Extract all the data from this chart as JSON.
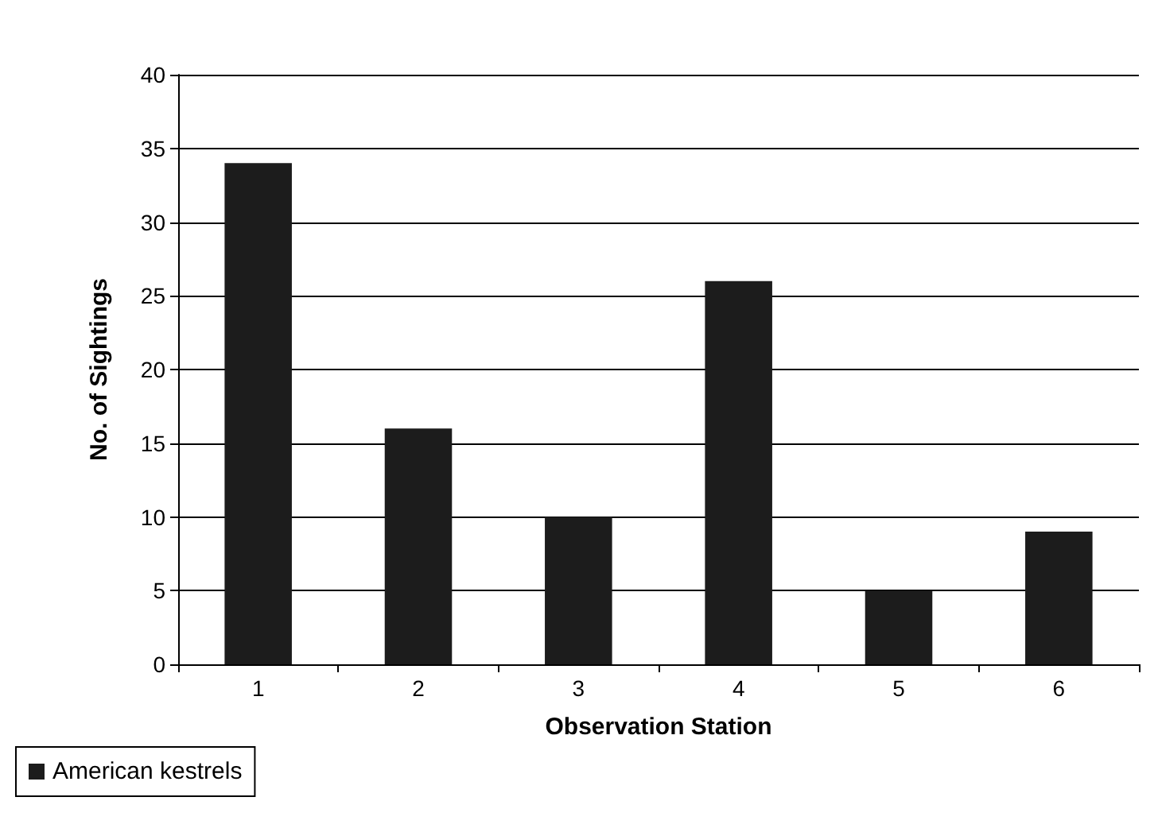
{
  "chart_data": {
    "type": "bar",
    "xlabel": "Observation Station",
    "ylabel": "No. of Sightings",
    "categories": [
      "1",
      "2",
      "3",
      "4",
      "5",
      "6"
    ],
    "series": [
      {
        "name": "American kestrels",
        "color": "#1c1c1c",
        "values": [
          34,
          16,
          10,
          26,
          5,
          9
        ]
      }
    ],
    "ylim": [
      0,
      40
    ],
    "yticks": [
      0,
      5,
      10,
      15,
      20,
      25,
      30,
      35,
      40
    ],
    "grid": "y",
    "legend": "bottom left"
  }
}
